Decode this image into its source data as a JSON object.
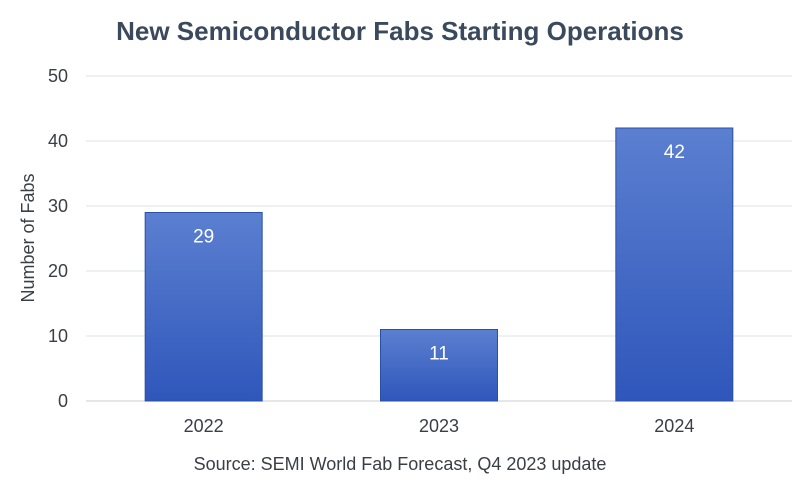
{
  "chart_data": {
    "type": "bar",
    "title": "New Semiconductor Fabs Starting Operations",
    "categories": [
      "2022",
      "2023",
      "2024"
    ],
    "values": [
      29,
      11,
      42
    ],
    "data_labels": [
      "29",
      "11",
      "42"
    ],
    "xlabel": "",
    "ylabel": "Number of Fabs",
    "ylim": [
      0,
      50
    ],
    "yticks": [
      "0",
      "10",
      "20",
      "30",
      "40",
      "50"
    ],
    "grid": true,
    "legend": "none",
    "bar_color_top": "#5b7fd0",
    "bar_color_bottom": "#2f57bb",
    "source": "Source: SEMI World Fab Forecast, Q4 2023 update"
  }
}
